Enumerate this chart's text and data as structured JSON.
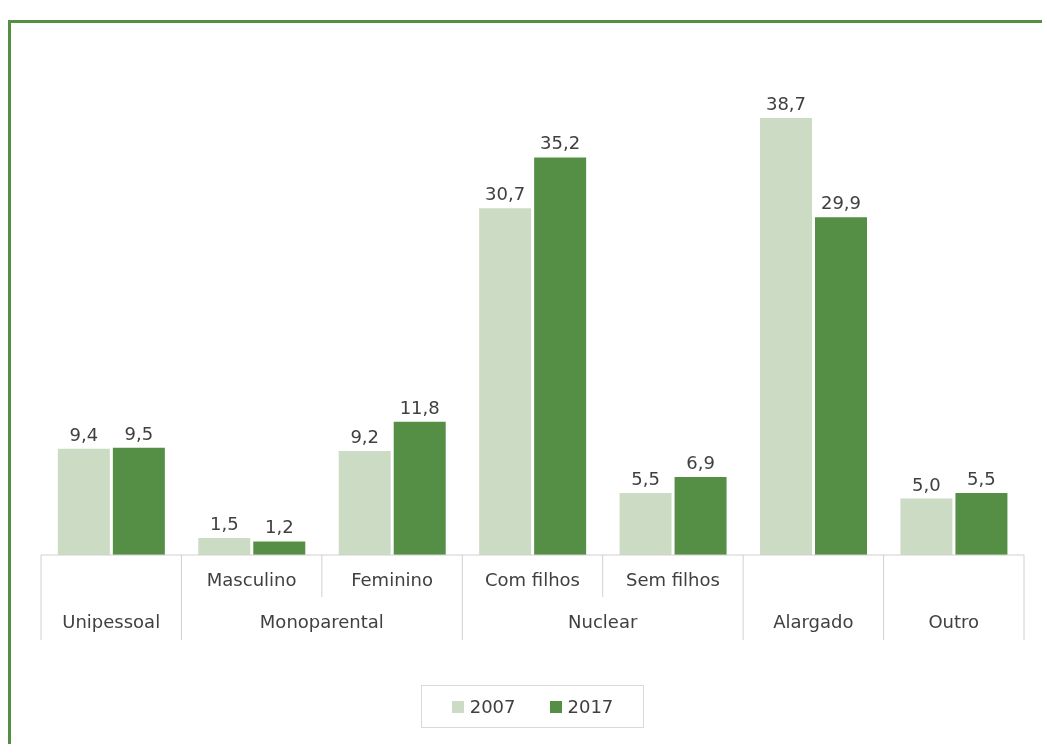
{
  "chart_data": {
    "type": "bar",
    "categories": [
      "Unipessoal",
      "Masculino",
      "Feminino",
      "Com filhos",
      "Sem filhos",
      "Alargado",
      "Outro"
    ],
    "series": [
      {
        "name": "2007",
        "color": "#ccdcc4",
        "values": [
          9.4,
          1.5,
          9.2,
          30.7,
          5.5,
          38.7,
          5.0
        ],
        "value_labels": [
          "9,4",
          "1,5",
          "9,2",
          "30,7",
          "5,5",
          "38,7",
          "5,0"
        ]
      },
      {
        "name": "2017",
        "color": "#548f45",
        "values": [
          9.5,
          1.2,
          11.8,
          35.2,
          6.9,
          29.9,
          5.5
        ],
        "value_labels": [
          "9,5",
          "1,2",
          "11,8",
          "35,2",
          "6,9",
          "29,9",
          "5,5"
        ]
      }
    ],
    "annotations": [
      "Monoparental",
      "Nuclear"
    ],
    "grid": false,
    "legend": "bottom"
  }
}
